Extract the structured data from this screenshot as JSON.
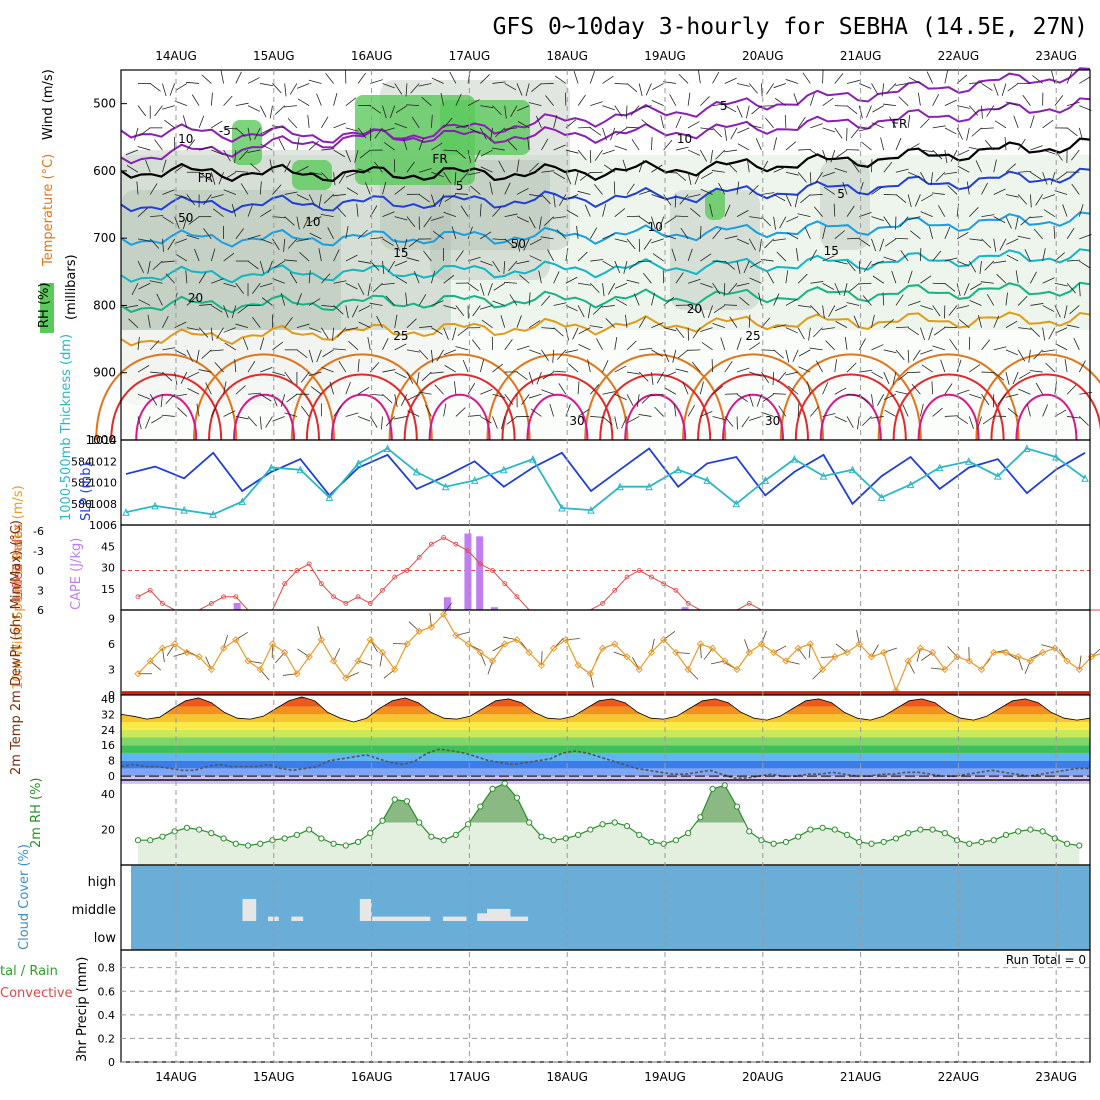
{
  "title": "GFS 0~10day 3-hourly for SEBHA (14.5E, 27N)",
  "colors": {
    "purple": "#8b1fb5",
    "black": "#000000",
    "blue": "#1f3fd6",
    "lightblue": "#1a9ee0",
    "cyan": "#12b6c2",
    "teal": "#15b486",
    "orange": "#e29b18",
    "darkorange": "#e0761a",
    "red": "#e02a2a",
    "magenta": "#d6168a",
    "rhgreen": "#5bc95b",
    "rhgrey": "#a8b8a8",
    "cloud": "#6aaed8",
    "slp": "#1f3fd6",
    "thick": "#2bb7c4",
    "li": "#e04848",
    "cape": "#c07ef0",
    "wind": "#e89a2a",
    "rh2m": "#2a8f2a"
  },
  "chart_data": [
    {
      "type": "line",
      "panel": "upper-air cross-section",
      "title": "GFS 0~10day 3-hourly for SEBHA (14.5E, 27N)",
      "x_tick_labels": [
        "14AUG",
        "15AUG",
        "16AUG",
        "17AUG",
        "18AUG",
        "19AUG",
        "20AUG",
        "21AUG",
        "22AUG",
        "23AUG"
      ],
      "ylabel_parts": [
        "RH (%)",
        "Temperature (°C)",
        "Wind (m/s)"
      ],
      "ylabel_unit": "(millibars)",
      "y_tick_labels": [
        "500",
        "600",
        "700",
        "800",
        "900",
        "1000"
      ],
      "ylim": [
        1000,
        450
      ],
      "grid": true,
      "contour_labels": [
        {
          "text": "-5",
          "color": "purple",
          "day": 0.5
        },
        {
          "text": "5",
          "color": "purple",
          "day": 5.6
        },
        {
          "text": "5",
          "color": "blue",
          "day": 2.9
        },
        {
          "text": "5",
          "color": "blue",
          "day": 6.8
        },
        {
          "text": "FR",
          "color": "black",
          "day": 0.3
        },
        {
          "text": "FR",
          "color": "black",
          "day": 2.7
        },
        {
          "text": "FR",
          "color": "black",
          "day": 7.4
        },
        {
          "text": "10",
          "color": "lightblue",
          "day": 1.4
        },
        {
          "text": "10",
          "color": "lightblue",
          "day": 4.9
        },
        {
          "text": "15",
          "color": "cyan",
          "day": 2.3
        },
        {
          "text": "15",
          "color": "cyan",
          "day": 6.7
        },
        {
          "text": "20",
          "color": "teal",
          "day": 0.2
        },
        {
          "text": "20",
          "color": "teal",
          "day": 5.3
        },
        {
          "text": "25",
          "color": "orange",
          "day": 2.3
        },
        {
          "text": "25",
          "color": "orange",
          "day": 5.9
        },
        {
          "text": "30",
          "color": "darkorange",
          "day": 4.1
        },
        {
          "text": "30",
          "color": "darkorange",
          "day": 6.1
        },
        {
          "text": "10",
          "color": "grey",
          "day": 0.1
        },
        {
          "text": "10",
          "color": "grey",
          "day": 5.2
        },
        {
          "text": "50",
          "color": "grey",
          "day": 0.1
        },
        {
          "text": "50",
          "color": "grey",
          "day": 3.5
        }
      ],
      "series": [
        {
          "name": "-5",
          "color": "purple",
          "values": [
            580,
            520,
            455
          ]
        },
        {
          "name": "5",
          "color": "purple",
          "values": [
            540,
            545,
            500
          ]
        },
        {
          "name": "FR",
          "color": "black",
          "values": [
            600,
            600,
            560
          ]
        },
        {
          "name": "5",
          "color": "blue",
          "values": [
            650,
            640,
            605
          ]
        },
        {
          "name": "10",
          "color": "lightblue",
          "values": [
            700,
            695,
            670
          ]
        },
        {
          "name": "15",
          "color": "cyan",
          "values": [
            755,
            745,
            725
          ]
        },
        {
          "name": "20",
          "color": "teal",
          "values": [
            800,
            790,
            775
          ]
        },
        {
          "name": "25",
          "color": "orange",
          "values": [
            850,
            830,
            820
          ]
        }
      ]
    },
    {
      "type": "line",
      "panel": "SLP and thickness",
      "ylabel_left": "1000-500mb Thickness (dm)",
      "ylabel_right": "SLP (mb)",
      "y_tick_labels_left": [
        "580",
        "582",
        "584"
      ],
      "y_tick_labels_right": [
        "1006",
        "1008",
        "1010",
        "1012",
        "1014"
      ],
      "ylim": [
        1006,
        1014
      ],
      "series": [
        {
          "name": "SLP",
          "color": "slp",
          "values": [
            1010.8,
            1011.5,
            1010.4,
            1012.8,
            1009.2,
            1011.0,
            1012.2,
            1008.8,
            1011.4,
            1012.6,
            1009.4,
            1010.6,
            1012.0,
            1009.6,
            1011.4,
            1012.8,
            1009.2,
            1011.2,
            1013.2,
            1009.6,
            1011.8,
            1012.4,
            1008.8,
            1011.0,
            1012.6,
            1008.0,
            1010.6,
            1012.4,
            1009.4,
            1011.4,
            1012.2,
            1009.0,
            1011.2,
            1012.8
          ]
        },
        {
          "name": "Thickness",
          "color": "thick",
          "values": [
            1007.2,
            1007.8,
            1007.4,
            1007.0,
            1008.2,
            1011.4,
            1011.2,
            1008.6,
            1011.8,
            1013.2,
            1011.0,
            1009.6,
            1010.2,
            1011.2,
            1012.2,
            1007.6,
            1007.4,
            1009.6,
            1009.6,
            1011.2,
            1010.2,
            1008.0,
            1010.2,
            1012.2,
            1010.6,
            1011.2,
            1008.6,
            1009.8,
            1011.4,
            1012.0,
            1010.6,
            1013.2,
            1012.4,
            1010.4
          ]
        }
      ]
    },
    {
      "type": "bar",
      "panel": "lifted index and CAPE",
      "ylabel_left": "Lifted Index",
      "ylabel_right": "CAPE (J/kg)",
      "y_tick_labels_left": [
        "-6",
        "-3",
        "0",
        "3",
        "6"
      ],
      "y_tick_labels_right": [
        "15",
        "30",
        "45"
      ],
      "cape_day_positions": [
        0.62,
        2.77,
        2.98,
        3.1,
        3.25,
        5.2
      ],
      "cape_values": [
        5,
        9,
        54,
        52,
        2,
        2
      ],
      "li_values": [
        4,
        3,
        5,
        6,
        6,
        6,
        5,
        4,
        4,
        6,
        6,
        6,
        2,
        0,
        -1,
        2,
        4,
        5,
        4,
        5,
        3,
        1,
        0,
        -2,
        -4,
        -5,
        -4,
        -3,
        -1,
        0,
        2,
        4,
        6,
        6,
        6,
        6,
        6,
        6,
        5,
        3,
        1,
        0,
        1,
        2,
        3,
        5,
        6,
        6,
        6,
        6,
        5,
        6,
        6,
        6,
        6,
        6,
        6,
        6,
        6,
        6,
        6,
        6,
        6,
        6,
        6,
        6,
        6,
        6,
        6,
        6,
        6,
        6,
        6,
        6,
        6,
        6,
        6,
        6,
        6,
        6
      ]
    },
    {
      "type": "line",
      "panel": "10m wind",
      "ylabel": "10m Wind Speed & Barbs (m/s)",
      "y_tick_labels": [
        "0",
        "3",
        "6",
        "9"
      ],
      "ylim": [
        0,
        10
      ],
      "series": [
        {
          "name": "10m Wind Speed",
          "color": "wind",
          "values": [
            2.5,
            4.0,
            5.5,
            6.0,
            5.0,
            4.5,
            3.0,
            5.5,
            6.5,
            4.0,
            3.0,
            6.0,
            5.0,
            2.5,
            4.5,
            6.5,
            4.0,
            2.0,
            4.0,
            6.5,
            5.0,
            3.0,
            6.0,
            7.5,
            8.0,
            9.5,
            7.0,
            6.0,
            5.0,
            4.0,
            6.0,
            6.5,
            5.0,
            3.5,
            5.5,
            6.5,
            3.5,
            2.5,
            5.5,
            6.0,
            4.5,
            3.0,
            5.0,
            6.5,
            5.0,
            3.0,
            6.0,
            5.5,
            4.0,
            3.0,
            5.0,
            6.0,
            5.0,
            4.0,
            5.5,
            6.0,
            3.0,
            4.5,
            5.0,
            6.0,
            4.5,
            5.0,
            0.5,
            4.0,
            5.5,
            5.0,
            3.0,
            4.5,
            4.0,
            3.0,
            5.0,
            5.0,
            4.5,
            4.0,
            5.0,
            5.5,
            4.0,
            3.0,
            4.5,
            5.0
          ]
        }
      ]
    },
    {
      "type": "area",
      "panel": "2m temperature and dewpoint",
      "ylabel": "2m Temp 2m DewPt (6hr Min/Max) (°C)",
      "y_tick_labels": [
        "0",
        "8",
        "16",
        "24",
        "32",
        "40"
      ],
      "ylim": [
        -2,
        42
      ],
      "series": [
        {
          "name": "2m Temp",
          "color": "red",
          "values": [
            32,
            31,
            29.5,
            30.5,
            35,
            39,
            40.5,
            38,
            33,
            30,
            29.5,
            31,
            35,
            39,
            41,
            39,
            33,
            30,
            28,
            30,
            35,
            39,
            40.5,
            38,
            33,
            30,
            29.5,
            31,
            35,
            39,
            40,
            38,
            33,
            30,
            29.5,
            31,
            35,
            39,
            40,
            38,
            33,
            30,
            29.5,
            31,
            35,
            39,
            40,
            38,
            33,
            30,
            29,
            31,
            35,
            39,
            40,
            38,
            33,
            30,
            29,
            31,
            35,
            39,
            40,
            38,
            33,
            30,
            29,
            31,
            35,
            39,
            40,
            38,
            33,
            30,
            29,
            30
          ]
        },
        {
          "name": "2m DewPt",
          "color": "dewpt",
          "values": [
            5,
            6,
            5,
            5,
            4,
            3,
            3,
            5,
            6,
            5,
            5,
            5,
            6,
            4,
            3,
            4,
            5,
            8,
            9,
            10,
            11,
            9,
            7,
            6,
            8,
            12,
            14,
            13,
            12,
            10,
            8,
            7,
            6,
            7,
            8,
            9,
            12,
            13,
            12,
            10,
            8,
            6,
            4,
            3,
            2,
            1,
            1,
            2,
            3,
            1,
            -1,
            -1,
            0,
            1,
            0,
            0,
            1,
            1,
            2,
            1,
            0,
            0,
            1,
            1,
            2,
            2,
            1,
            0,
            0,
            1,
            2,
            3,
            2,
            1,
            0,
            1,
            2,
            3,
            4,
            4
          ]
        }
      ]
    },
    {
      "type": "area",
      "panel": "2m RH",
      "ylabel": "2m RH (%)",
      "y_tick_labels": [
        "20",
        "40"
      ],
      "ylim": [
        0,
        48
      ],
      "series": [
        {
          "name": "2m RH",
          "color": "rh2m",
          "values": [
            14,
            14,
            16,
            19,
            21,
            20,
            18,
            15,
            12,
            11,
            12,
            14,
            15,
            17,
            20,
            15,
            12,
            11,
            13,
            18,
            25,
            37,
            36,
            24,
            16,
            14,
            17,
            23,
            33,
            43,
            46,
            38,
            24,
            16,
            14,
            15,
            17,
            20,
            23,
            24,
            22,
            17,
            13,
            12,
            14,
            18,
            27,
            43,
            45,
            33,
            19,
            14,
            12,
            13,
            16,
            20,
            21,
            20,
            17,
            13,
            12,
            13,
            15,
            18,
            20,
            20,
            18,
            14,
            12,
            13,
            14,
            17,
            19,
            20,
            19,
            15,
            12,
            11,
            13,
            16,
            19,
            22,
            22
          ]
        }
      ]
    },
    {
      "type": "bar",
      "panel": "cloud cover",
      "ylabel": "Cloud Cover (%)",
      "y_tick_labels": [
        "high",
        "middle",
        "low"
      ],
      "middle_cloud_days": [
        {
          "start": 0.68,
          "end": 0.82,
          "amount": 1.0
        },
        {
          "start": 0.94,
          "end": 1.05,
          "amount": 0.2
        },
        {
          "start": 1.18,
          "end": 1.3,
          "amount": 0.2
        },
        {
          "start": 1.88,
          "end": 2.0,
          "amount": 1.0
        },
        {
          "start": 2.0,
          "end": 2.6,
          "amount": 0.2
        },
        {
          "start": 2.73,
          "end": 2.97,
          "amount": 0.2
        },
        {
          "start": 3.08,
          "end": 3.18,
          "amount": 0.35
        },
        {
          "start": 3.18,
          "end": 3.42,
          "amount": 0.55
        },
        {
          "start": 3.42,
          "end": 3.6,
          "amount": 0.2
        }
      ]
    },
    {
      "type": "bar",
      "panel": "3hr precipitation",
      "ylabel_left": "tal / Rain",
      "ylabel_left2": "Convective",
      "ylabel_right": "3hr Precip (mm)",
      "y_tick_labels": [
        "0",
        "0.2",
        "0.4",
        "0.6",
        "0.8"
      ],
      "ylim": [
        0,
        0.95
      ],
      "run_total_label": "Run Total = 0",
      "values": []
    }
  ]
}
